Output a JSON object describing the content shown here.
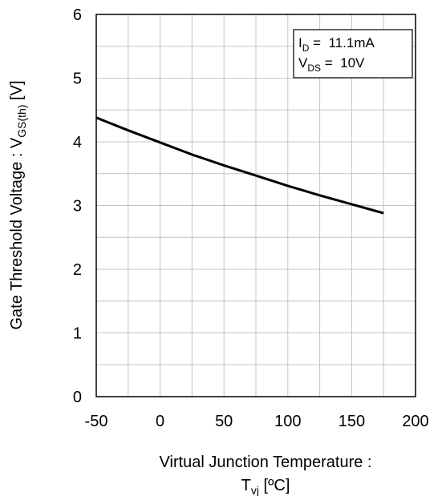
{
  "chart_data": {
    "type": "line",
    "xlabel": {
      "line1": "Virtual Junction Temperature :",
      "line2_main": "T",
      "line2_sub": "vj",
      "line2_rest": " [ºC]"
    },
    "ylabel": {
      "main": "Gate Threshold Voltage : V",
      "sub": "GS(th)",
      "rest": " [V]"
    },
    "xlim": [
      -50,
      200
    ],
    "ylim": [
      0,
      6
    ],
    "x_ticks": [
      "-50",
      "0",
      "50",
      "100",
      "150",
      "200"
    ],
    "y_ticks": [
      "0",
      "1",
      "2",
      "3",
      "4",
      "5",
      "6"
    ],
    "x_tick_values": [
      -50,
      0,
      50,
      100,
      150,
      200
    ],
    "y_tick_values": [
      0,
      1,
      2,
      3,
      4,
      5,
      6
    ],
    "x_minor_step": 25,
    "y_minor_step": 0.5,
    "grid": true,
    "legend_position": "top-right",
    "conditions": [
      {
        "main": "I",
        "sub": "D",
        "value": " =  11.1mA"
      },
      {
        "main": "V",
        "sub": "DS",
        "value": " =  10V"
      }
    ],
    "series": [
      {
        "x": [
          -50,
          -25,
          0,
          25,
          50,
          75,
          100,
          125,
          150,
          175
        ],
        "y": [
          4.38,
          4.18,
          3.99,
          3.8,
          3.63,
          3.47,
          3.31,
          3.16,
          3.02,
          2.88
        ]
      }
    ]
  }
}
